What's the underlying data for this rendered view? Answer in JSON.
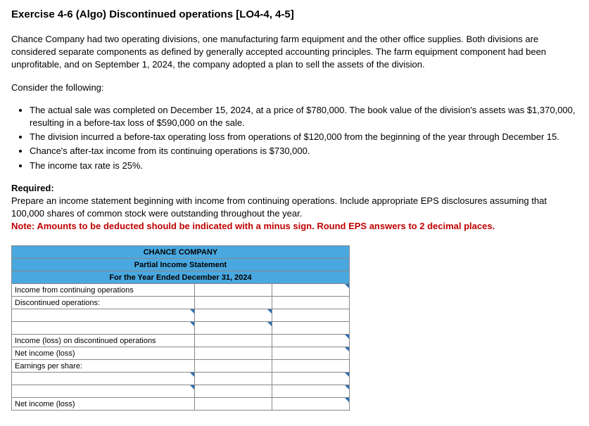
{
  "title": "Exercise 4-6 (Algo) Discontinued operations [LO4-4, 4-5]",
  "intro": "Chance Company had two operating divisions, one manufacturing farm equipment and the other office supplies. Both divisions are considered separate components as defined by generally accepted accounting principles. The farm equipment component had been unprofitable, and on September 1, 2024, the company adopted a plan to sell the assets of the division.",
  "consider": "Consider the following:",
  "bullets": [
    "The actual sale was completed on December 15, 2024, at a price of $780,000. The book value of the division's assets was $1,370,000, resulting in a before-tax loss of $590,000 on the sale.",
    "The division incurred a before-tax operating loss from operations of $120,000 from the beginning of the year through December 15.",
    "Chance's after-tax income from its continuing operations is $730,000.",
    "The income tax rate is 25%."
  ],
  "required_label": "Required:",
  "required_text": "Prepare an income statement beginning with income from continuing operations. Include appropriate EPS disclosures assuming that 100,000 shares of common stock were outstanding throughout the year.",
  "note": "Note: Amounts to be deducted should be indicated with a minus sign. Round EPS answers to 2 decimal places.",
  "table": {
    "header1": "CHANCE COMPANY",
    "header2": "Partial Income Statement",
    "header3": "For the Year Ended December 31, 2024",
    "rows": {
      "r1": "Income from continuing operations",
      "r2": "Discontinued operations:",
      "r3": "",
      "r4": "",
      "r5": "Income (loss) on discontinued operations",
      "r6": "Net income (loss)",
      "r7": "Earnings per share:",
      "r8": "",
      "r9": "",
      "r10": "Net income (loss)"
    }
  },
  "colors": {
    "header_bg": "#4aa8e0",
    "note_color": "#c00000",
    "corner_color": "#2a6fb5"
  }
}
